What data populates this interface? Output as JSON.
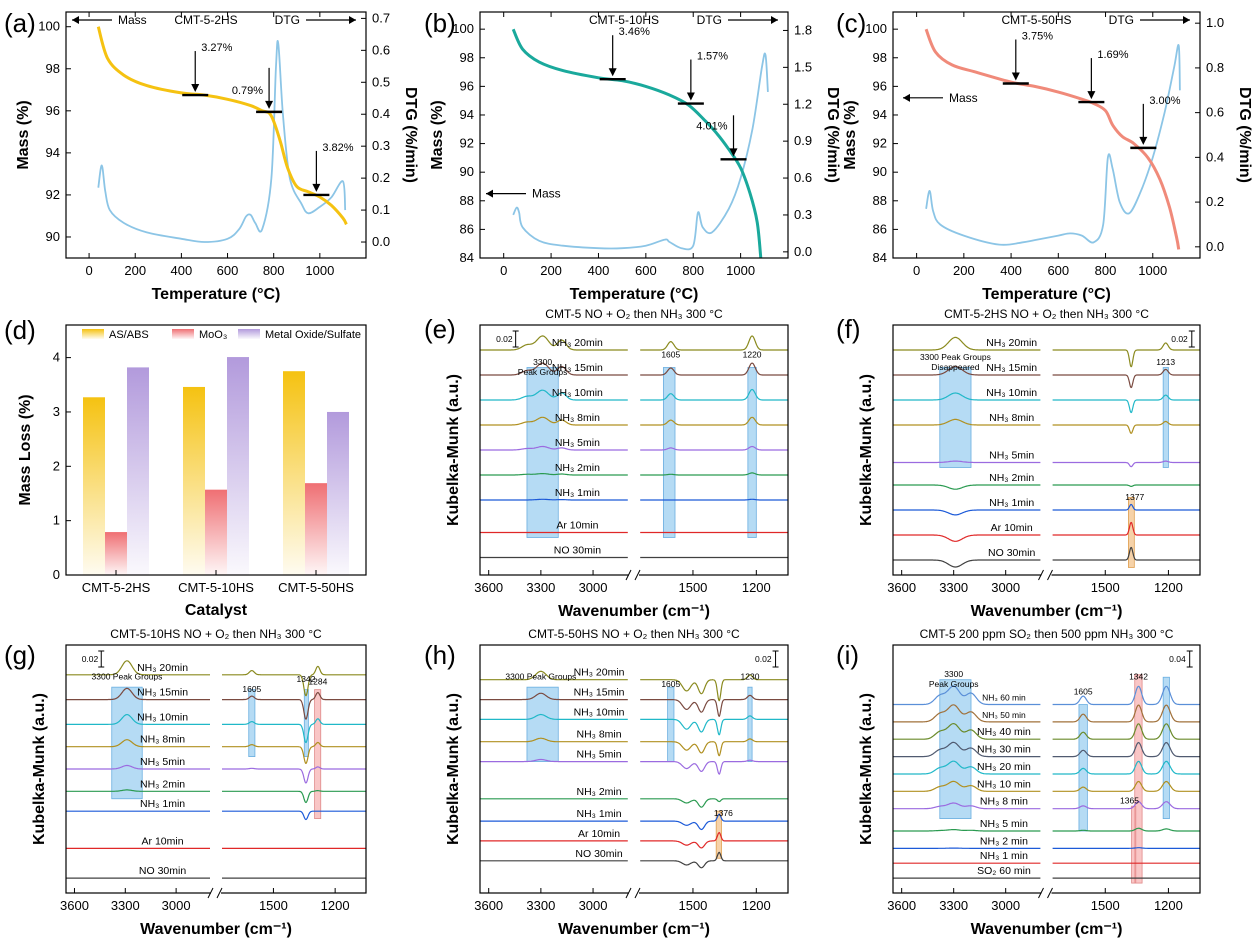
{
  "chart_data": [
    {
      "id": "a",
      "type": "line",
      "letter": "(a)",
      "title": "CMT-5-2HS",
      "xlabel": "Temperature (°C)",
      "ylabel": "Mass (%)",
      "y2label": "DTG (%/min)",
      "xlim": [
        -100,
        1200
      ],
      "ylim": [
        89,
        100.7
      ],
      "y2lim": [
        -0.05,
        0.72
      ],
      "xticks": [
        "0",
        "200",
        "400",
        "600",
        "800",
        "1000"
      ],
      "xtickvals": [
        0,
        200,
        400,
        600,
        800,
        1000
      ],
      "yticks": [
        "90",
        "92",
        "94",
        "96",
        "98",
        "100"
      ],
      "ytickvals": [
        90,
        92,
        94,
        96,
        98,
        100
      ],
      "y2ticks": [
        "0.0",
        "0.1",
        "0.2",
        "0.3",
        "0.4",
        "0.5",
        "0.6",
        "0.7"
      ],
      "y2tickvals": [
        0,
        0.1,
        0.2,
        0.3,
        0.4,
        0.5,
        0.6,
        0.7
      ],
      "mass_label": "Mass",
      "dtg_label": "DTG",
      "mass_color": "#f5c211",
      "dtg_color": "#8cc5e6",
      "mass": [
        [
          40,
          100.0
        ],
        [
          80,
          98.5
        ],
        [
          150,
          97.7
        ],
        [
          250,
          97.2
        ],
        [
          400,
          96.85
        ],
        [
          500,
          96.75
        ],
        [
          600,
          96.55
        ],
        [
          700,
          96.25
        ],
        [
          750,
          96.0
        ],
        [
          780,
          95.9
        ],
        [
          800,
          95.5
        ],
        [
          830,
          94.5
        ],
        [
          860,
          93.3
        ],
        [
          900,
          92.4
        ],
        [
          950,
          92.15
        ],
        [
          1000,
          91.9
        ],
        [
          1050,
          91.5
        ],
        [
          1100,
          90.9
        ],
        [
          1115,
          90.6
        ]
      ],
      "dtg": [
        [
          40,
          0.17
        ],
        [
          55,
          0.24
        ],
        [
          70,
          0.16
        ],
        [
          90,
          0.1
        ],
        [
          150,
          0.06
        ],
        [
          250,
          0.03
        ],
        [
          400,
          0.01
        ],
        [
          500,
          0.0
        ],
        [
          600,
          0.01
        ],
        [
          650,
          0.04
        ],
        [
          680,
          0.08
        ],
        [
          700,
          0.085
        ],
        [
          720,
          0.06
        ],
        [
          750,
          0.04
        ],
        [
          790,
          0.2
        ],
        [
          810,
          0.55
        ],
        [
          820,
          0.62
        ],
        [
          840,
          0.4
        ],
        [
          870,
          0.2
        ],
        [
          920,
          0.12
        ],
        [
          950,
          0.09
        ],
        [
          1000,
          0.11
        ],
        [
          1050,
          0.14
        ],
        [
          1100,
          0.19
        ],
        [
          1110,
          0.1
        ]
      ],
      "steps": [
        {
          "label": "3.27%",
          "x": 460,
          "y": 96.75
        },
        {
          "label": "0.79%",
          "x": 780,
          "y": 95.95
        },
        {
          "label": "3.82%",
          "x": 985,
          "y": 92.0
        }
      ]
    },
    {
      "id": "b",
      "type": "line",
      "letter": "(b)",
      "title": "CMT-5-10HS",
      "xlabel": "Temperature (°C)",
      "ylabel": "Mass (%)",
      "y2label": "DTG (%/min)",
      "xlim": [
        -100,
        1200
      ],
      "ylim": [
        84,
        101.2
      ],
      "y2lim": [
        -0.05,
        1.95
      ],
      "xticks": [
        "0",
        "200",
        "400",
        "600",
        "800",
        "1000"
      ],
      "xtickvals": [
        0,
        200,
        400,
        600,
        800,
        1000
      ],
      "yticks": [
        "84",
        "86",
        "88",
        "90",
        "92",
        "94",
        "96",
        "98",
        "100"
      ],
      "ytickvals": [
        84,
        86,
        88,
        90,
        92,
        94,
        96,
        98,
        100
      ],
      "y2ticks": [
        "0.0",
        "0.3",
        "0.6",
        "0.9",
        "1.2",
        "1.5",
        "1.8"
      ],
      "y2tickvals": [
        0,
        0.3,
        0.6,
        0.9,
        1.2,
        1.5,
        1.8
      ],
      "mass_label": "Mass",
      "dtg_label": "DTG",
      "mass_color": "#1aa99c",
      "dtg_color": "#8cc5e6",
      "mass": [
        [
          40,
          100.0
        ],
        [
          80,
          98.6
        ],
        [
          150,
          97.7
        ],
        [
          250,
          97.1
        ],
        [
          400,
          96.6
        ],
        [
          500,
          96.4
        ],
        [
          600,
          96.0
        ],
        [
          700,
          95.4
        ],
        [
          780,
          94.7
        ],
        [
          850,
          93.6
        ],
        [
          900,
          92.7
        ],
        [
          950,
          91.6
        ],
        [
          1000,
          90.3
        ],
        [
          1040,
          88.5
        ],
        [
          1070,
          86.5
        ],
        [
          1085,
          84.0
        ]
      ],
      "dtg": [
        [
          40,
          0.3
        ],
        [
          55,
          0.36
        ],
        [
          65,
          0.32
        ],
        [
          80,
          0.2
        ],
        [
          150,
          0.09
        ],
        [
          250,
          0.05
        ],
        [
          400,
          0.03
        ],
        [
          500,
          0.03
        ],
        [
          600,
          0.05
        ],
        [
          680,
          0.1
        ],
        [
          700,
          0.08
        ],
        [
          750,
          0.03
        ],
        [
          800,
          0.05
        ],
        [
          820,
          0.32
        ],
        [
          840,
          0.2
        ],
        [
          880,
          0.16
        ],
        [
          950,
          0.35
        ],
        [
          1000,
          0.6
        ],
        [
          1050,
          1.0
        ],
        [
          1090,
          1.5
        ],
        [
          1105,
          1.6
        ],
        [
          1115,
          1.3
        ]
      ],
      "steps": [
        {
          "label": "3.46%",
          "x": 460,
          "y": 96.5
        },
        {
          "label": "1.57%",
          "x": 790,
          "y": 94.8
        },
        {
          "label": "4.01%",
          "x": 970,
          "y": 90.9
        }
      ]
    },
    {
      "id": "c",
      "type": "line",
      "letter": "(c)",
      "title": "CMT-5-50HS",
      "xlabel": "Temperature (°C)",
      "ylabel": "Mass (%)",
      "y2label": "DTG (%/min)",
      "xlim": [
        -100,
        1200
      ],
      "ylim": [
        84,
        101.2
      ],
      "y2lim": [
        -0.05,
        1.05
      ],
      "xticks": [
        "0",
        "200",
        "400",
        "600",
        "800",
        "1000"
      ],
      "xtickvals": [
        0,
        200,
        400,
        600,
        800,
        1000
      ],
      "yticks": [
        "84",
        "86",
        "88",
        "90",
        "92",
        "94",
        "96",
        "98",
        "100"
      ],
      "ytickvals": [
        84,
        86,
        88,
        90,
        92,
        94,
        96,
        98,
        100
      ],
      "y2ticks": [
        "0.0",
        "0.2",
        "0.4",
        "0.6",
        "0.8",
        "1.0"
      ],
      "y2tickvals": [
        0,
        0.2,
        0.4,
        0.6,
        0.8,
        1.0
      ],
      "mass_label": "Mass",
      "dtg_label": "DTG",
      "mass_color": "#f08a7a",
      "dtg_color": "#8cc5e6",
      "mass": [
        [
          40,
          100.0
        ],
        [
          80,
          98.4
        ],
        [
          150,
          97.5
        ],
        [
          250,
          97.0
        ],
        [
          400,
          96.3
        ],
        [
          500,
          96.0
        ],
        [
          600,
          95.6
        ],
        [
          700,
          95.1
        ],
        [
          750,
          94.8
        ],
        [
          800,
          94.3
        ],
        [
          830,
          93.3
        ],
        [
          870,
          92.5
        ],
        [
          920,
          92.0
        ],
        [
          980,
          91.0
        ],
        [
          1030,
          89.5
        ],
        [
          1070,
          87.6
        ],
        [
          1100,
          85.5
        ],
        [
          1110,
          84.6
        ]
      ],
      "dtg": [
        [
          40,
          0.17
        ],
        [
          55,
          0.25
        ],
        [
          70,
          0.16
        ],
        [
          100,
          0.1
        ],
        [
          200,
          0.05
        ],
        [
          350,
          0.01
        ],
        [
          450,
          0.02
        ],
        [
          500,
          0.03
        ],
        [
          600,
          0.05
        ],
        [
          650,
          0.06
        ],
        [
          700,
          0.05
        ],
        [
          750,
          0.02
        ],
        [
          790,
          0.1
        ],
        [
          810,
          0.4
        ],
        [
          830,
          0.35
        ],
        [
          860,
          0.2
        ],
        [
          900,
          0.15
        ],
        [
          950,
          0.25
        ],
        [
          1000,
          0.4
        ],
        [
          1050,
          0.6
        ],
        [
          1090,
          0.8
        ],
        [
          1110,
          0.9
        ],
        [
          1115,
          0.7
        ]
      ],
      "steps": [
        {
          "label": "3.75%",
          "x": 420,
          "y": 96.2
        },
        {
          "label": "1.69%",
          "x": 740,
          "y": 94.9
        },
        {
          "label": "3.00%",
          "x": 960,
          "y": 91.7
        }
      ]
    },
    {
      "id": "d",
      "type": "bar",
      "letter": "(d)",
      "xlabel": "Catalyst",
      "ylabel": "Mass Loss (%)",
      "categories": [
        "CMT-5-2HS",
        "CMT-5-10HS",
        "CMT-5-50HS"
      ],
      "ylim": [
        0,
        4.6
      ],
      "yticks": [
        "0",
        "1",
        "2",
        "3",
        "4"
      ],
      "ytickvals": [
        0,
        1,
        2,
        3,
        4
      ],
      "series": [
        {
          "name": "AS/ABS",
          "values": [
            3.27,
            3.46,
            3.75
          ],
          "color": "#f5c211"
        },
        {
          "name": "MoO3",
          "values": [
            0.79,
            1.57,
            1.69
          ],
          "color": "#ef6f73"
        },
        {
          "name": "Metal Oxide/Sulfate",
          "values": [
            3.82,
            4.01,
            3.0
          ],
          "color": "#b29adc"
        }
      ]
    },
    {
      "id": "e",
      "type": "line",
      "letter": "(e)",
      "title": "CMT-5   NO + O₂ then NH₃   300 °C",
      "xlabel": "Wavenumber (cm⁻¹)",
      "ylabel": "Kubelka-Munk (a.u.)",
      "xticks": [
        "3600",
        "3300",
        "3000",
        "1500",
        "1200"
      ],
      "scale": "0.02",
      "bands": [
        {
          "label": "3300\nPeak Groups",
          "kind": "blue"
        },
        {
          "label": "1605",
          "kind": "blue"
        },
        {
          "label": "1220",
          "kind": "blue"
        }
      ],
      "curves": [
        {
          "name": "NH₃ 20min",
          "color": "#8a8a1e"
        },
        {
          "name": "NH₃ 15min",
          "color": "#7a4a40"
        },
        {
          "name": "NH₃ 10min",
          "color": "#20b8c8"
        },
        {
          "name": "NH₃ 8min",
          "color": "#b09020"
        },
        {
          "name": "NH₃ 5min",
          "color": "#9b6be0"
        },
        {
          "name": "NH₃ 2min",
          "color": "#2a9a50"
        },
        {
          "name": "NH₃ 1min",
          "color": "#1c5ad8"
        },
        {
          "name": "Ar 10min",
          "color": "#e02828"
        },
        {
          "name": "NO 30min",
          "color": "#404040"
        }
      ]
    },
    {
      "id": "f",
      "type": "line",
      "letter": "(f)",
      "title": "CMT-5-2HS   NO + O₂ then NH₃   300 °C",
      "xlabel": "Wavenumber (cm⁻¹)",
      "ylabel": "Kubelka-Munk (a.u.)",
      "xticks": [
        "3600",
        "3300",
        "3000",
        "1500",
        "1200"
      ],
      "scale": "0.02",
      "bands": [
        {
          "label": "3300 Peak Groups\nDisappeared",
          "kind": "blue"
        },
        {
          "label": "1213",
          "kind": "blue"
        },
        {
          "label": "1377",
          "kind": "orange"
        }
      ],
      "curves": [
        {
          "name": "NH₃ 20min",
          "color": "#8a8a1e"
        },
        {
          "name": "NH₃ 15min",
          "color": "#7a4a40"
        },
        {
          "name": "NH₃ 10min",
          "color": "#20b8c8"
        },
        {
          "name": "NH₃ 8min",
          "color": "#b09020"
        },
        {
          "name": "NH₃ 5min",
          "color": "#9b6be0"
        },
        {
          "name": "NH₃ 2min",
          "color": "#2a9a50"
        },
        {
          "name": "NH₃ 1min",
          "color": "#1c5ad8"
        },
        {
          "name": "Ar 10min",
          "color": "#e02828"
        },
        {
          "name": "NO 30min",
          "color": "#404040"
        }
      ]
    },
    {
      "id": "g",
      "type": "line",
      "letter": "(g)",
      "title": "CMT-5-10HS   NO + O₂ then NH₃   300 °C",
      "xlabel": "Wavenumber (cm⁻¹)",
      "ylabel": "Kubelka-Munk (a.u.)",
      "xticks": [
        "3600",
        "3300",
        "3000",
        "1500",
        "1200"
      ],
      "scale": "0.02",
      "bands": [
        {
          "label": "3300 Peak Groups",
          "kind": "blue"
        },
        {
          "label": "1605",
          "kind": "blue"
        },
        {
          "label": "1342",
          "kind": "blue"
        },
        {
          "label": "1284",
          "kind": "red"
        }
      ],
      "curves": [
        {
          "name": "NH₃ 20min",
          "color": "#8a8a1e"
        },
        {
          "name": "NH₃ 15min",
          "color": "#7a4a40"
        },
        {
          "name": "NH₃ 10min",
          "color": "#20b8c8"
        },
        {
          "name": "NH₃ 8min",
          "color": "#b09020"
        },
        {
          "name": "NH₃ 5min",
          "color": "#9b6be0"
        },
        {
          "name": "NH₃ 2min",
          "color": "#2a9a50"
        },
        {
          "name": "NH₃ 1min",
          "color": "#1c5ad8"
        },
        {
          "name": "Ar 10min",
          "color": "#e02828"
        },
        {
          "name": "NO 30min",
          "color": "#404040"
        }
      ]
    },
    {
      "id": "h",
      "type": "line",
      "letter": "(h)",
      "title": "CMT-5-50HS   NO + O₂ then NH₃   300 °C",
      "xlabel": "Wavenumber (cm⁻¹)",
      "ylabel": "Kubelka-Munk (a.u.)",
      "xticks": [
        "3600",
        "3300",
        "3000",
        "1500",
        "1200"
      ],
      "scale": "0.02",
      "bands": [
        {
          "label": "3300 Peak Groups",
          "kind": "blue"
        },
        {
          "label": "1605",
          "kind": "blue"
        },
        {
          "label": "1230",
          "kind": "blue"
        },
        {
          "label": "1376",
          "kind": "orange"
        }
      ],
      "curves": [
        {
          "name": "NH₃ 20min",
          "color": "#8a8a1e"
        },
        {
          "name": "NH₃ 15min",
          "color": "#7a4a40"
        },
        {
          "name": "NH₃ 10min",
          "color": "#20b8c8"
        },
        {
          "name": "NH₃ 8min",
          "color": "#b09020"
        },
        {
          "name": "NH₃ 5min",
          "color": "#9b6be0"
        },
        {
          "name": "NH₃ 2min",
          "color": "#2a9a50"
        },
        {
          "name": "NH₃ 1min",
          "color": "#1c5ad8"
        },
        {
          "name": "Ar 10min",
          "color": "#e02828"
        },
        {
          "name": "NO 30min",
          "color": "#404040"
        }
      ]
    },
    {
      "id": "i",
      "type": "line",
      "letter": "(i)",
      "title": "CMT-5   200 ppm SO₂ then 500 ppm NH₃   300 °C",
      "xlabel": "Wavenumber (cm⁻¹)",
      "ylabel": "Kubelka-Munk (a.u.)",
      "xticks": [
        "3600",
        "3300",
        "3000",
        "1500",
        "1200"
      ],
      "scale": "0.04",
      "bands": [
        {
          "label": "3300\nPeak Groups",
          "kind": "blue"
        },
        {
          "label": "1605",
          "kind": "blue"
        },
        {
          "label": "1342",
          "kind": "red"
        },
        {
          "label": "1365",
          "kind": "red"
        }
      ],
      "curves": [
        {
          "name": "NH₃ 60 min",
          "color": "#5a8fd8"
        },
        {
          "name": "NH₃ 50 min",
          "color": "#a0703a"
        },
        {
          "name": "NH₃ 40 min",
          "color": "#6a8a2a"
        },
        {
          "name": "NH₃ 30 min",
          "color": "#505a70"
        },
        {
          "name": "NH₃ 20 min",
          "color": "#20b8c8"
        },
        {
          "name": "NH₃ 10 min",
          "color": "#b09020"
        },
        {
          "name": "NH₃ 8 min",
          "color": "#9b6be0"
        },
        {
          "name": "NH₃ 5 min",
          "color": "#2a9a50"
        },
        {
          "name": "NH₃ 2 min",
          "color": "#1c5ad8"
        },
        {
          "name": "NH₃ 1 min",
          "color": "#e02828"
        },
        {
          "name": "SO₂ 60 min",
          "color": "#404040"
        }
      ]
    }
  ]
}
